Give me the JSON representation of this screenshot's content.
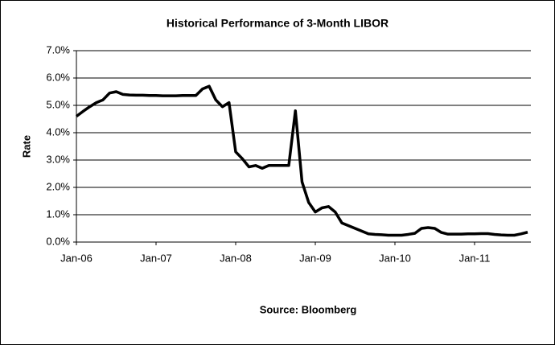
{
  "chart_data": {
    "type": "line",
    "title": "Historical Performance of 3-Month LIBOR",
    "y_label": "Rate",
    "annotation": "Source: Bloomberg",
    "categories": [
      "Jan-06",
      null,
      null,
      null,
      null,
      null,
      null,
      null,
      null,
      null,
      null,
      null,
      "Jan-07",
      null,
      null,
      null,
      null,
      null,
      null,
      null,
      null,
      null,
      null,
      null,
      "Jan-08",
      null,
      null,
      null,
      null,
      null,
      null,
      null,
      null,
      null,
      null,
      null,
      "Jan-09",
      null,
      null,
      null,
      null,
      null,
      null,
      null,
      null,
      null,
      null,
      null,
      "Jan-10",
      null,
      null,
      null,
      null,
      null,
      null,
      null,
      null,
      null,
      null,
      null,
      "Jan-11",
      null,
      null,
      null,
      null,
      null,
      null,
      null,
      null
    ],
    "series": [
      {
        "name": "3-Month LIBOR",
        "color": "#000000",
        "values": [
          4.6,
          4.78,
          4.95,
          5.1,
          5.2,
          5.45,
          5.5,
          5.4,
          5.38,
          5.37,
          5.37,
          5.36,
          5.36,
          5.35,
          5.35,
          5.35,
          5.36,
          5.36,
          5.36,
          5.6,
          5.7,
          5.2,
          4.95,
          5.1,
          3.3,
          3.05,
          2.75,
          2.8,
          2.7,
          2.8,
          2.8,
          2.8,
          2.8,
          4.8,
          2.2,
          1.45,
          1.1,
          1.25,
          1.3,
          1.1,
          0.7,
          0.6,
          0.5,
          0.4,
          0.3,
          0.28,
          0.27,
          0.25,
          0.25,
          0.25,
          0.28,
          0.32,
          0.5,
          0.53,
          0.5,
          0.35,
          0.29,
          0.29,
          0.29,
          0.3,
          0.3,
          0.31,
          0.31,
          0.28,
          0.26,
          0.25,
          0.25,
          0.3,
          0.36
        ]
      }
    ],
    "ylim": [
      0,
      7
    ],
    "yticks": [
      {
        "value": 0,
        "label": "0.0%"
      },
      {
        "value": 1,
        "label": "1.0%"
      },
      {
        "value": 2,
        "label": "2.0%"
      },
      {
        "value": 3,
        "label": "3.0%"
      },
      {
        "value": 4,
        "label": "4.0%"
      },
      {
        "value": 5,
        "label": "5.0%"
      },
      {
        "value": 6,
        "label": "6.0%"
      },
      {
        "value": 7,
        "label": "7.0%"
      }
    ],
    "grid": true
  }
}
